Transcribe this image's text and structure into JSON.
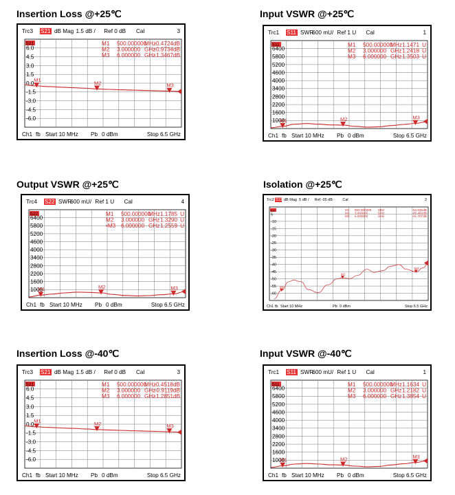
{
  "charts": [
    {
      "id": "il25",
      "title": "Insertion Loss @+25℃",
      "trace": "Trc3",
      "param": "S21",
      "format": "dB Mag",
      "scale": "1.5 dB /",
      "ref": "Ref 0 dB",
      "cal": "Cal",
      "trace_num": "3",
      "ticks": [
        "6.0",
        "4.5",
        "3.0",
        "1.5",
        "0.0",
        "-1.5",
        "-3.0",
        "-4.5",
        "-6.0"
      ],
      "markers": [
        {
          "name": "M1",
          "freq": "500.000000",
          "funit": "MHz",
          "value": "-0.4724",
          "vunit": "dB"
        },
        {
          "name": "M2",
          "freq": "3.000000",
          "funit": "GHz",
          "value": "-0.9734",
          "vunit": "dB"
        },
        {
          "name": "M3",
          "freq": "6.000000",
          "funit": "GHz",
          "value": "-1.3467",
          "vunit": "dB"
        }
      ],
      "footer": {
        "ch": "Ch1",
        "fb": "fb",
        "start": "Start 10 MHz",
        "pb": "Pb",
        "power": "0 dBm",
        "stop": "Stop 6.5 GHz"
      },
      "colors": {
        "trace": "#cc2a2a",
        "badge": "#e83030"
      },
      "chart_data": {
        "type": "line",
        "x_unit": "GHz",
        "xlim": [
          0.01,
          6.5
        ],
        "ylim": [
          -7.5,
          7.5
        ],
        "x": [
          0.01,
          0.5,
          1.0,
          1.5,
          2.0,
          2.5,
          3.0,
          3.5,
          4.0,
          4.5,
          5.0,
          5.5,
          6.0,
          6.5
        ],
        "y": [
          -0.3,
          -0.47,
          -0.58,
          -0.68,
          -0.77,
          -0.86,
          -0.97,
          -1.05,
          -1.12,
          -1.18,
          -1.24,
          -1.3,
          -1.35,
          -1.42
        ],
        "marker_points": [
          [
            0.5,
            -0.4724
          ],
          [
            3.0,
            -0.9734
          ],
          [
            6.0,
            -1.3467
          ]
        ]
      }
    },
    {
      "id": "vswr_in25",
      "title": "Input VSWR @+25℃",
      "trace": "Trc1",
      "param": "S11",
      "format": "SWR",
      "scale": "600 mU/",
      "ref": "Ref 1 U",
      "cal": "Cal",
      "trace_num": "1",
      "ticks": [
        "6400",
        "5800",
        "5200",
        "4600",
        "4000",
        "3400",
        "2800",
        "2200",
        "1600",
        "1000"
      ],
      "markers": [
        {
          "name": "M1",
          "freq": "500.000000",
          "funit": "MHz",
          "value": "1.1471",
          "vunit": "U"
        },
        {
          "name": "M2",
          "freq": "3.000000",
          "funit": "GHz",
          "value": "1.2418",
          "vunit": "U"
        },
        {
          "name": "M3",
          "freq": "6.000000",
          "funit": "GHz",
          "value": "1.3503",
          "vunit": "U"
        }
      ],
      "footer": {
        "ch": "Ch1",
        "fb": "fb",
        "start": "Start 10 MHz",
        "pb": "Pb",
        "power": "0 dBm",
        "stop": "Stop 6.5 GHz"
      },
      "colors": {
        "trace": "#cc2a2a",
        "badge": "#e83030"
      },
      "chart_data": {
        "type": "line",
        "x_unit": "GHz",
        "xlim": [
          0.01,
          6.5
        ],
        "ylim": [
          1.0,
          7.0
        ],
        "x": [
          0.01,
          0.5,
          1.0,
          1.5,
          2.0,
          2.5,
          3.0,
          3.5,
          4.0,
          4.5,
          5.0,
          5.5,
          6.0,
          6.5
        ],
        "y": [
          1.05,
          1.15,
          1.3,
          1.34,
          1.3,
          1.25,
          1.24,
          1.15,
          1.1,
          1.12,
          1.2,
          1.28,
          1.35,
          1.48
        ],
        "marker_points": [
          [
            0.5,
            1.1471
          ],
          [
            3.0,
            1.2418
          ],
          [
            6.0,
            1.3503
          ]
        ]
      }
    },
    {
      "id": "vswr_out25",
      "title": "Output VSWR @+25℃",
      "trace": "Trc4",
      "param": "S22",
      "format": "SWR",
      "scale": "600 mU/",
      "ref": "Ref 1 U",
      "cal": "Cal",
      "trace_num": "4",
      "ticks": [
        "6400",
        "5800",
        "5200",
        "4600",
        "4000",
        "3400",
        "2800",
        "2200",
        "1600",
        "1000"
      ],
      "markers": [
        {
          "name": "M1",
          "freq": "500.000000",
          "funit": "MHz",
          "value": "1.1785",
          "vunit": "U"
        },
        {
          "name": "M2",
          "freq": "3.000000",
          "funit": "GHz",
          "value": "1.3290",
          "vunit": "U"
        },
        {
          "name": "•M3",
          "freq": "6.000000",
          "funit": "GHz",
          "value": "1.2559",
          "vunit": "U"
        }
      ],
      "footer": {
        "ch": "Ch1",
        "fb": "fb",
        "start": "Start 10 MHz",
        "pb": "Pb",
        "power": "0 dBm",
        "stop": "Stop 6.5 GHz"
      },
      "colors": {
        "trace": "#cc2a2a",
        "badge": "#e83030"
      },
      "chart_data": {
        "type": "line",
        "x_unit": "GHz",
        "xlim": [
          0.01,
          6.5
        ],
        "ylim": [
          1.0,
          7.0
        ],
        "x": [
          0.01,
          0.5,
          1.0,
          1.5,
          2.0,
          2.5,
          3.0,
          3.5,
          4.0,
          4.5,
          5.0,
          5.5,
          6.0,
          6.5
        ],
        "y": [
          1.05,
          1.18,
          1.25,
          1.33,
          1.38,
          1.36,
          1.33,
          1.22,
          1.15,
          1.12,
          1.14,
          1.2,
          1.26,
          1.42
        ],
        "marker_points": [
          [
            0.5,
            1.1785
          ],
          [
            3.0,
            1.329
          ],
          [
            6.0,
            1.2559
          ]
        ]
      }
    },
    {
      "id": "iso25",
      "title": "Isolation @+25℃",
      "trace": "Trc2",
      "param": "S12",
      "format": "dB Mag",
      "scale": "5 dB /",
      "ref": "Ref -35 dB",
      "cal": "Cal",
      "trace_num": "2",
      "ticks": [
        "5",
        "-10",
        "-15",
        "-20",
        "-25",
        "-30",
        "-35",
        "-40",
        "-45",
        "-50",
        "-55",
        "-60"
      ],
      "markers": [
        {
          "name": "M1",
          "freq": "500.000000",
          "funit": "MHz",
          "value": "-53.629",
          "vunit": "dB"
        },
        {
          "name": "M2",
          "freq": "3.000000",
          "funit": "GHz",
          "value": "-45.462",
          "vunit": "dB"
        },
        {
          "name": "M3",
          "freq": "6.000000",
          "funit": "GHz",
          "value": "-41.707",
          "vunit": "dB"
        }
      ],
      "footer": {
        "ch": "Ch1",
        "fb": "fb",
        "start": "Start 10 MHz",
        "pb": "Pb",
        "power": "0 dBm",
        "stop": "Stop 6.5 GHz"
      },
      "colors": {
        "trace": "#cc2a2a",
        "badge": "#e83030"
      },
      "chart_data": {
        "type": "line",
        "x_unit": "GHz",
        "xlim": [
          0.01,
          6.5
        ],
        "ylim": [
          -60,
          0
        ],
        "x": [
          0.2,
          0.5,
          0.8,
          1.0,
          1.3,
          1.6,
          2.0,
          2.4,
          2.8,
          3.0,
          3.3,
          3.6,
          4.0,
          4.3,
          4.6,
          5.0,
          5.3,
          5.6,
          6.0,
          6.3,
          6.5
        ],
        "y": [
          -59,
          -53.6,
          -48,
          -47,
          -48,
          -53,
          -55,
          -50,
          -46,
          -45.5,
          -46,
          -44,
          -40,
          -42,
          -41,
          -38,
          -37,
          -40,
          -41.7,
          -39,
          -36
        ],
        "marker_points": [
          [
            0.5,
            -53.629
          ],
          [
            3.0,
            -45.462
          ],
          [
            6.0,
            -41.707
          ]
        ]
      }
    },
    {
      "id": "il_40",
      "title": "Insertion Loss @-40℃",
      "trace": "Trc3",
      "param": "S21",
      "format": "dB Mag",
      "scale": "1.5 dB /",
      "ref": "Ref 0 dB",
      "cal": "Cal",
      "trace_num": "3",
      "ticks": [
        "6.0",
        "4.5",
        "3.0",
        "1.5",
        "0.0",
        "-1.5",
        "-3.0",
        "-4.5",
        "-6.0"
      ],
      "markers": [
        {
          "name": "M1",
          "freq": "500.000000",
          "funit": "MHz",
          "value": "-0.4518",
          "vunit": "dB"
        },
        {
          "name": "M2",
          "freq": "3.000000",
          "funit": "GHz",
          "value": "-0.9119",
          "vunit": "dB"
        },
        {
          "name": "M3",
          "freq": "6.000000",
          "funit": "GHz",
          "value": "-1.2851",
          "vunit": "dB"
        }
      ],
      "footer": {
        "ch": "Ch1",
        "fb": "fb",
        "start": "Start 10 MHz",
        "pb": "Pb",
        "power": "0 dBm",
        "stop": "Stop 6.5 GHz"
      },
      "colors": {
        "trace": "#cc2a2a",
        "badge": "#e83030"
      },
      "chart_data": {
        "type": "line",
        "x_unit": "GHz",
        "xlim": [
          0.01,
          6.5
        ],
        "ylim": [
          -7.5,
          7.5
        ],
        "x": [
          0.01,
          0.5,
          1.0,
          1.5,
          2.0,
          2.5,
          3.0,
          3.5,
          4.0,
          4.5,
          5.0,
          5.5,
          6.0,
          6.5
        ],
        "y": [
          -0.3,
          -0.45,
          -0.55,
          -0.64,
          -0.72,
          -0.81,
          -0.91,
          -0.99,
          -1.06,
          -1.12,
          -1.18,
          -1.23,
          -1.29,
          -1.36
        ],
        "marker_points": [
          [
            0.5,
            -0.4518
          ],
          [
            3.0,
            -0.9119
          ],
          [
            6.0,
            -1.2851
          ]
        ]
      }
    },
    {
      "id": "vswr_in_40",
      "title": "Input VSWR @-40℃",
      "trace": "Trc1",
      "param": "S11",
      "format": "SWR",
      "scale": "600 mU/",
      "ref": "Ref 1 U",
      "cal": "Cal",
      "trace_num": "1",
      "ticks": [
        "6400",
        "5800",
        "5200",
        "4600",
        "4000",
        "3400",
        "2800",
        "2200",
        "1600",
        "1000"
      ],
      "markers": [
        {
          "name": "M1",
          "freq": "500.000000",
          "funit": "MHz",
          "value": "1.1634",
          "vunit": "U"
        },
        {
          "name": "M2",
          "freq": "3.000000",
          "funit": "GHz",
          "value": "1.2182",
          "vunit": "U"
        },
        {
          "name": "M3",
          "freq": "6.000000",
          "funit": "GHz",
          "value": "1.3854",
          "vunit": "U"
        }
      ],
      "footer": {
        "ch": "Ch1",
        "fb": "fb",
        "start": "Start 10 MHz",
        "pb": "Pb",
        "power": "0 dBm",
        "stop": "Stop 6.5 GHz"
      },
      "colors": {
        "trace": "#cc2a2a",
        "badge": "#e83030"
      },
      "chart_data": {
        "type": "line",
        "x_unit": "GHz",
        "xlim": [
          0.01,
          6.5
        ],
        "ylim": [
          1.0,
          7.0
        ],
        "x": [
          0.01,
          0.5,
          1.0,
          1.5,
          2.0,
          2.5,
          3.0,
          3.5,
          4.0,
          4.5,
          5.0,
          5.5,
          6.0,
          6.5
        ],
        "y": [
          1.05,
          1.16,
          1.28,
          1.32,
          1.28,
          1.23,
          1.22,
          1.14,
          1.1,
          1.12,
          1.22,
          1.3,
          1.39,
          1.5
        ],
        "marker_points": [
          [
            0.5,
            1.1634
          ],
          [
            3.0,
            1.2182
          ],
          [
            6.0,
            1.3854
          ]
        ]
      }
    }
  ]
}
